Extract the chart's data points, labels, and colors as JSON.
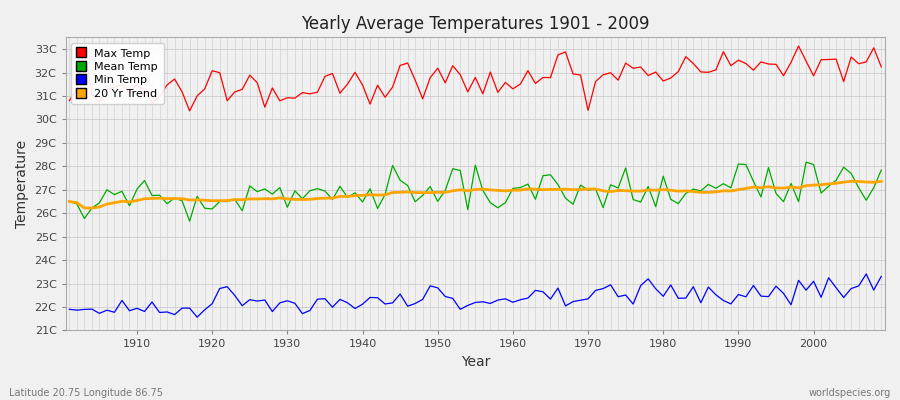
{
  "title": "Yearly Average Temperatures 1901 - 2009",
  "xlabel": "Year",
  "ylabel": "Temperature",
  "bottom_left_label": "Latitude 20.75 Longitude 86.75",
  "bottom_right_label": "worldspecies.org",
  "year_start": 1901,
  "year_end": 2009,
  "ylim": [
    21.0,
    33.5
  ],
  "yticks": [
    21,
    22,
    23,
    24,
    25,
    26,
    27,
    28,
    29,
    30,
    31,
    32,
    33
  ],
  "ytick_labels": [
    "21C",
    "22C",
    "23C",
    "24C",
    "25C",
    "26C",
    "27C",
    "28C",
    "29C",
    "30C",
    "31C",
    "32C",
    "33C"
  ],
  "xticks": [
    1910,
    1920,
    1930,
    1940,
    1950,
    1960,
    1970,
    1980,
    1990,
    2000
  ],
  "colors": {
    "max": "#ff0000",
    "mean": "#00aa00",
    "min": "#0000ff",
    "trend": "#ffa500",
    "background": "#f0f0f0",
    "plot_bg": "#f0f0f0",
    "grid_major": "#cccccc",
    "grid_minor": "#dddddd"
  },
  "legend": [
    {
      "label": "Max Temp",
      "color": "#ff0000"
    },
    {
      "label": "Mean Temp",
      "color": "#00aa00"
    },
    {
      "label": "Min Temp",
      "color": "#0000ff"
    },
    {
      "label": "20 Yr Trend",
      "color": "#ffa500"
    }
  ]
}
